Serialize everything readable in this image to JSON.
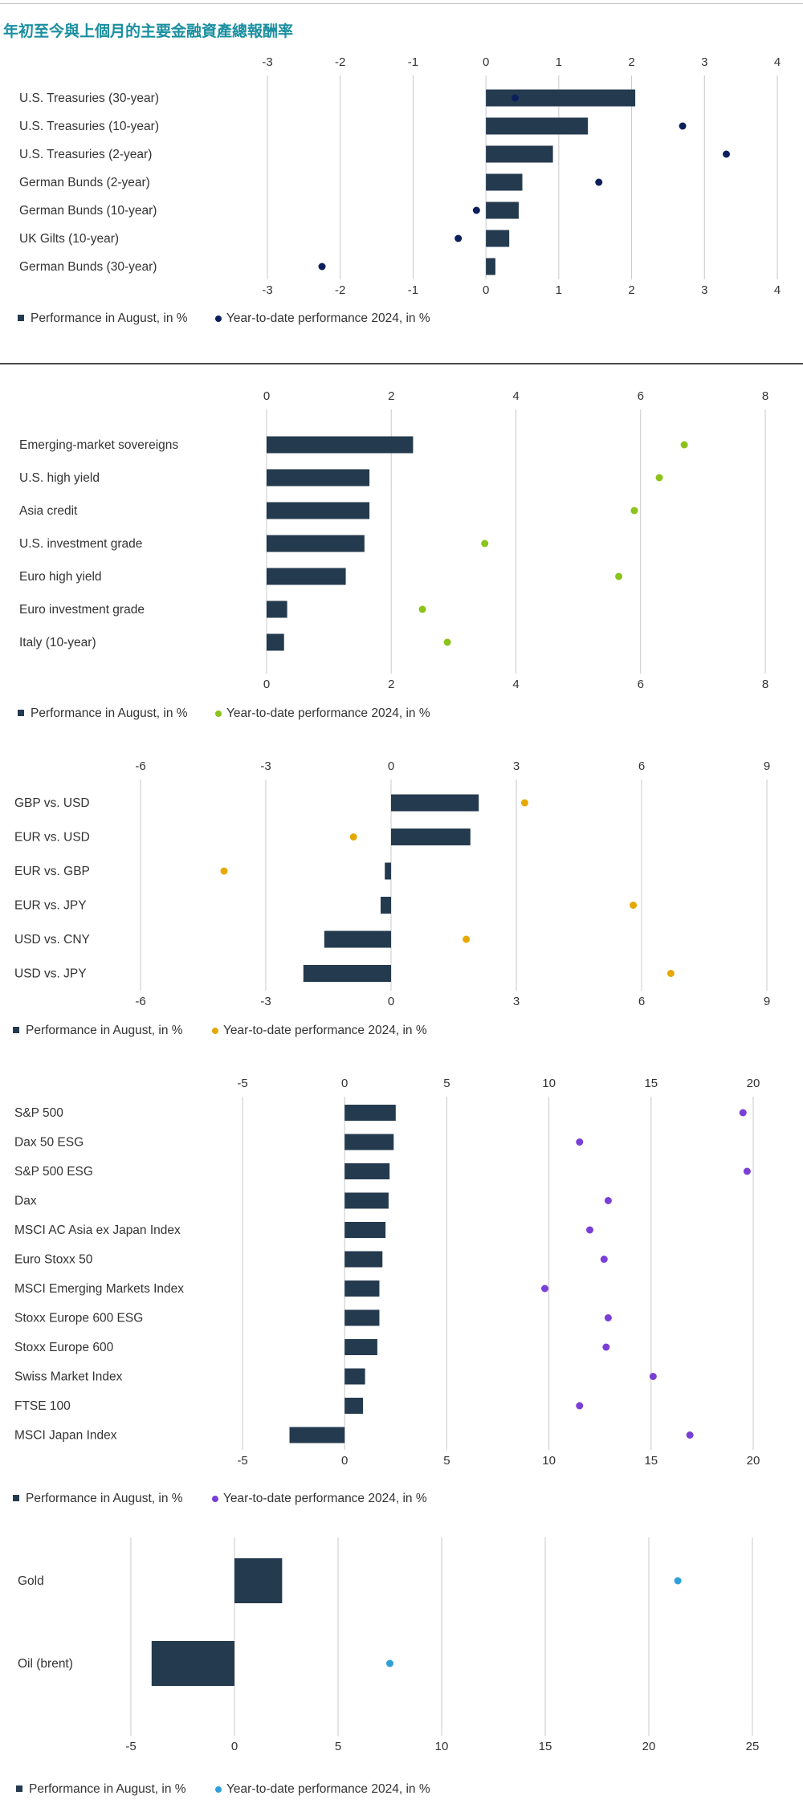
{
  "title": "年初至今與上個月的主要金融資產總報酬率",
  "colors": {
    "bar": "#243a4e",
    "grid": "#c8c8c8"
  },
  "chart_data": [
    {
      "type": "bar",
      "categories": [
        "U.S. Treasuries (30-year)",
        "U.S. Treasuries (10-year)",
        "U.S. Treasuries (2-year)",
        "German Bunds (2-year)",
        "German Bunds (10-year)",
        "UK Gilts (10-year)",
        "German Bunds (30-year)"
      ],
      "series": [
        {
          "name": "Performance in August, in %",
          "kind": "bar",
          "values": [
            2.05,
            1.4,
            0.92,
            0.5,
            0.45,
            0.32,
            0.13
          ]
        },
        {
          "name": "Year-to-date performance 2024, in %",
          "kind": "dot",
          "color": "#0b1f5c",
          "values": [
            0.4,
            2.7,
            3.3,
            1.55,
            -0.13,
            -0.38,
            -2.25
          ]
        }
      ],
      "xlim": [
        -3,
        4
      ],
      "ticks": [
        -3,
        -2,
        -1,
        0,
        1,
        2,
        3,
        4
      ],
      "bottom_axis": true
    },
    {
      "type": "bar",
      "categories": [
        "Emerging-market sovereigns",
        "U.S. high yield",
        "Asia credit",
        "U.S. investment grade",
        "Euro high yield",
        "Euro investment grade",
        "Italy (10-year)"
      ],
      "series": [
        {
          "name": "Performance in August, in %",
          "kind": "bar",
          "values": [
            2.35,
            1.65,
            1.65,
            1.57,
            1.27,
            0.33,
            0.28
          ]
        },
        {
          "name": "Year-to-date performance 2024, in %",
          "kind": "dot",
          "color": "#8cc21a",
          "values": [
            6.7,
            6.3,
            5.9,
            3.5,
            5.65,
            2.5,
            2.9
          ]
        }
      ],
      "xlim": [
        0,
        8
      ],
      "ticks": [
        0,
        2,
        4,
        6,
        8
      ],
      "bottom_axis": true
    },
    {
      "type": "bar",
      "categories": [
        "GBP vs. USD",
        "EUR vs. USD",
        "EUR vs. GBP",
        "EUR vs. JPY",
        "USD vs. CNY",
        "USD vs. JPY"
      ],
      "series": [
        {
          "name": "Performance in August, in %",
          "kind": "bar",
          "values": [
            2.1,
            1.9,
            -0.15,
            -0.25,
            -1.6,
            -2.1
          ]
        },
        {
          "name": "Year-to-date performance 2024, in %",
          "kind": "dot",
          "color": "#e6a800",
          "values": [
            3.2,
            -0.9,
            -4.0,
            5.8,
            1.8,
            6.7
          ]
        }
      ],
      "xlim": [
        -6,
        9
      ],
      "ticks": [
        -6,
        -3,
        0,
        3,
        6,
        9
      ],
      "bottom_axis": true
    },
    {
      "type": "bar",
      "categories": [
        "S&P 500",
        "Dax 50 ESG",
        "S&P 500 ESG",
        "Dax",
        "MSCI AC Asia ex Japan Index",
        "Euro Stoxx 50",
        "MSCI Emerging Markets Index",
        "Stoxx Europe 600 ESG",
        "Stoxx Europe 600",
        "Swiss Market Index",
        "FTSE 100",
        "MSCI Japan Index"
      ],
      "series": [
        {
          "name": "Performance in August, in %",
          "kind": "bar",
          "values": [
            2.5,
            2.4,
            2.2,
            2.15,
            2.0,
            1.85,
            1.7,
            1.7,
            1.6,
            1.0,
            0.9,
            -2.7
          ]
        },
        {
          "name": "Year-to-date performance 2024, in %",
          "kind": "dot",
          "color": "#7a3fd6",
          "values": [
            19.5,
            11.5,
            19.7,
            12.9,
            12.0,
            12.7,
            9.8,
            12.9,
            12.8,
            15.1,
            11.5,
            16.9
          ]
        }
      ],
      "xlim": [
        -5,
        20
      ],
      "ticks": [
        -5,
        0,
        5,
        10,
        15,
        20
      ],
      "bottom_axis": true
    },
    {
      "type": "bar",
      "categories": [
        "Gold",
        "Oil (brent)"
      ],
      "series": [
        {
          "name": "Performance in August, in %",
          "kind": "bar",
          "values": [
            2.3,
            -4.0
          ]
        },
        {
          "name": "Year-to-date performance 2024, in %",
          "kind": "dot",
          "color": "#2ea0d8",
          "values": [
            21.4,
            7.5
          ]
        }
      ],
      "xlim": [
        -5,
        25
      ],
      "ticks": [
        -5,
        0,
        5,
        10,
        15,
        20,
        25
      ],
      "bottom_axis": true
    }
  ]
}
